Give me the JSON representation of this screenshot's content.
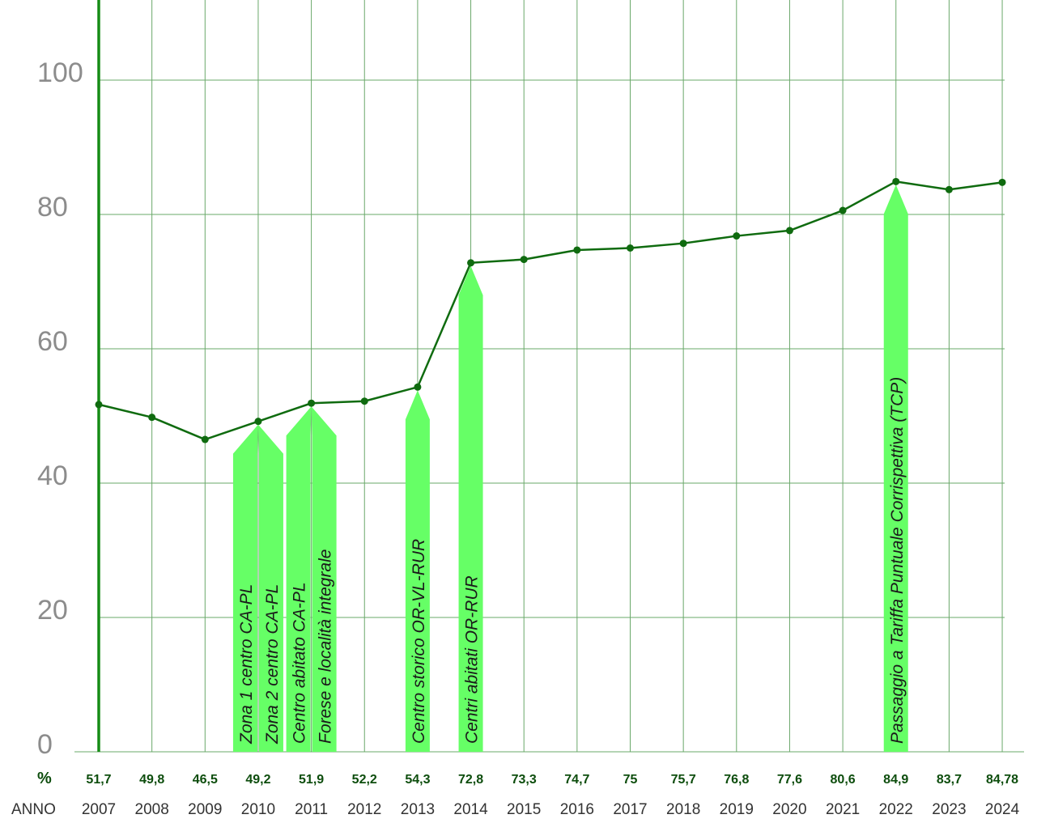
{
  "chart_data": {
    "type": "line",
    "x": [
      "2007",
      "2008",
      "2009",
      "2010",
      "2011",
      "2012",
      "2013",
      "2014",
      "2015",
      "2016",
      "2017",
      "2018",
      "2019",
      "2020",
      "2021",
      "2022",
      "2023",
      "2024"
    ],
    "values": [
      51.7,
      49.8,
      46.5,
      49.2,
      51.9,
      52.2,
      54.3,
      72.8,
      73.3,
      74.7,
      75,
      75.7,
      76.8,
      77.6,
      80.6,
      84.9,
      83.7,
      84.78
    ],
    "value_labels": [
      "51,7",
      "49,8",
      "46,5",
      "49,2",
      "51,9",
      "52,2",
      "54,3",
      "72,8",
      "73,3",
      "74,7",
      "75",
      "75,7",
      "76,8",
      "77,6",
      "80,6",
      "84,9",
      "83,7",
      "84,78"
    ],
    "ylim": [
      0,
      110
    ],
    "yticks": [
      "0",
      "20",
      "40",
      "60",
      "80",
      "100"
    ],
    "row_labels": {
      "value": "%",
      "year": "ANNO"
    },
    "grid": true,
    "colors": {
      "line": "#0f6b0f",
      "grid": "#6aa86a",
      "arrow": "#66ff66",
      "left_axis": "#168c16"
    },
    "annotations": [
      {
        "text": "Zona 1 centro CA-PL",
        "year": "2010"
      },
      {
        "text": "Zona 2 centro  CA-PL",
        "year": "2010"
      },
      {
        "text": "Centro  abitato CA-PL",
        "year": "2011"
      },
      {
        "text": "Forese e località integrale",
        "year": "2011"
      },
      {
        "text": "Centro storico OR-VL-RUR",
        "year": "2013"
      },
      {
        "text": "Centri  abitati OR-RUR",
        "year": "2014"
      },
      {
        "text": "Passaggio a  Tariffa Puntuale Corrispettiva (TCP)",
        "year": "2022"
      }
    ]
  }
}
